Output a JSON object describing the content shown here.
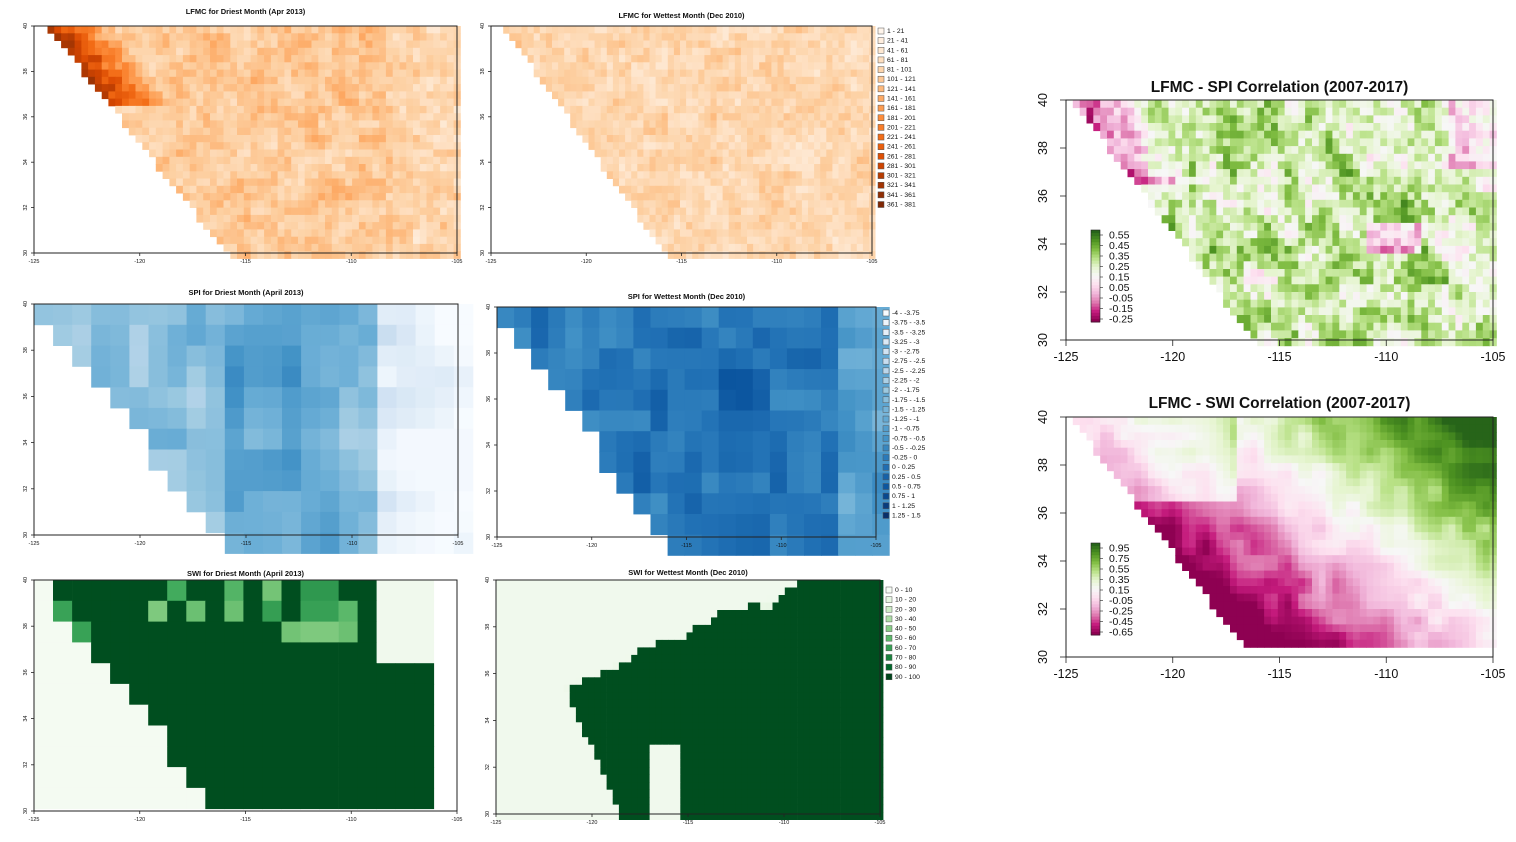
{
  "chart_data": [
    {
      "type": "heatmap",
      "id": "lfmc_dry",
      "title": "LFMC for Driest Month (Apr 2013)",
      "xticks": [
        "-125",
        "-120",
        "-115",
        "-110",
        "-105"
      ],
      "yticks": [
        "40",
        "38",
        "36",
        "34",
        "32",
        "30"
      ],
      "xlim": [
        -125,
        -105
      ],
      "ylim": [
        30,
        40
      ],
      "palette": "oranges",
      "legend": "none"
    },
    {
      "type": "heatmap",
      "id": "lfmc_wet",
      "title": "LFMC for Wettest Month (Dec 2010)",
      "xticks": [
        "-125",
        "-120",
        "-115",
        "-110",
        "-105"
      ],
      "yticks": [
        "40",
        "38",
        "36",
        "34",
        "32",
        "30"
      ],
      "xlim": [
        -125,
        -105
      ],
      "ylim": [
        30,
        40
      ],
      "palette": "oranges",
      "legend": "right",
      "legend_classes": [
        "1 - 21",
        "21 - 41",
        "41 - 61",
        "61 - 81",
        "81 - 101",
        "101 - 121",
        "121 - 141",
        "141 - 161",
        "161 - 181",
        "181 - 201",
        "201 - 221",
        "221 - 241",
        "241 - 261",
        "261 - 281",
        "281 - 301",
        "301 - 321",
        "321 - 341",
        "341 - 361",
        "361 - 381"
      ]
    },
    {
      "type": "heatmap",
      "id": "spi_dry",
      "title": "SPI for Driest Month (April 2013)",
      "xticks": [
        "-125",
        "-120",
        "-115",
        "-110",
        "-105"
      ],
      "yticks": [
        "40",
        "38",
        "36",
        "34",
        "32",
        "30"
      ],
      "xlim": [
        -125,
        -105
      ],
      "ylim": [
        30,
        40
      ],
      "palette": "blues",
      "legend": "none"
    },
    {
      "type": "heatmap",
      "id": "spi_wet",
      "title": "SPI for Wettest Month (Dec 2010)",
      "xticks": [
        "-125",
        "-120",
        "-115",
        "-110",
        "-105"
      ],
      "yticks": [
        "40",
        "38",
        "36",
        "34",
        "32",
        "30"
      ],
      "xlim": [
        -125,
        -105
      ],
      "ylim": [
        30,
        40
      ],
      "palette": "blues",
      "legend": "right",
      "legend_classes": [
        "-4 - -3.75",
        "-3.75 - -3.5",
        "-3.5 - -3.25",
        "-3.25 - -3",
        "-3 - -2.75",
        "-2.75 - -2.5",
        "-2.5 - -2.25",
        "-2.25 - -2",
        "-2 - -1.75",
        "-1.75 - -1.5",
        "-1.5 - -1.25",
        "-1.25 - -1",
        "-1 - -0.75",
        "-0.75 - -0.5",
        "-0.5 - -0.25",
        "-0.25 - 0",
        "0 - 0.25",
        "0.25 - 0.5",
        "0.5 - 0.75",
        "0.75 - 1",
        "1 - 1.25",
        "1.25 - 1.5"
      ]
    },
    {
      "type": "heatmap",
      "id": "swi_dry",
      "title": "SWI for Driest Month (April 2013)",
      "xticks": [
        "-125",
        "-120",
        "-115",
        "-110",
        "-105"
      ],
      "yticks": [
        "40",
        "38",
        "36",
        "34",
        "32",
        "30"
      ],
      "xlim": [
        -125,
        -105
      ],
      "ylim": [
        30,
        40
      ],
      "palette": "greens",
      "legend": "none"
    },
    {
      "type": "heatmap",
      "id": "swi_wet",
      "title": "SWI for Wettest Month (Dec 2010)",
      "xticks": [
        "-125",
        "-120",
        "-115",
        "-110",
        "-105"
      ],
      "yticks": [
        "40",
        "38",
        "36",
        "34",
        "32",
        "30"
      ],
      "xlim": [
        -125,
        -105
      ],
      "ylim": [
        30,
        40
      ],
      "palette": "greens",
      "legend": "right",
      "legend_classes": [
        "0 - 10",
        "10 - 20",
        "20 - 30",
        "30 - 40",
        "40 - 50",
        "50 - 60",
        "60 - 70",
        "70 - 80",
        "80 - 90",
        "90 - 100"
      ]
    },
    {
      "type": "heatmap",
      "id": "corr_spi",
      "title": "LFMC - SPI Correlation (2007-2017)",
      "xticks": [
        "-125",
        "-120",
        "-115",
        "-110",
        "-105"
      ],
      "yticks": [
        "40",
        "38",
        "36",
        "34",
        "32",
        "30"
      ],
      "xlim": [
        -125,
        -105
      ],
      "ylim": [
        30,
        40
      ],
      "palette": "piyg",
      "legend": "inset-left",
      "legend_labels": [
        "0.55",
        "0.45",
        "0.35",
        "0.25",
        "0.15",
        "0.05",
        "-0.05",
        "-0.15",
        "-0.25"
      ]
    },
    {
      "type": "heatmap",
      "id": "corr_swi",
      "title": "LFMC - SWI Correlation (2007-2017)",
      "xticks": [
        "-125",
        "-120",
        "-115",
        "-110",
        "-105"
      ],
      "yticks": [
        "40",
        "38",
        "36",
        "34",
        "32",
        "30"
      ],
      "xlim": [
        -125,
        -105
      ],
      "ylim": [
        30,
        40
      ],
      "palette": "piyg",
      "legend": "inset-left",
      "legend_labels": [
        "0.95",
        "0.75",
        "0.55",
        "0.35",
        "0.15",
        "-0.05",
        "-0.25",
        "-0.45",
        "-0.65"
      ]
    }
  ]
}
